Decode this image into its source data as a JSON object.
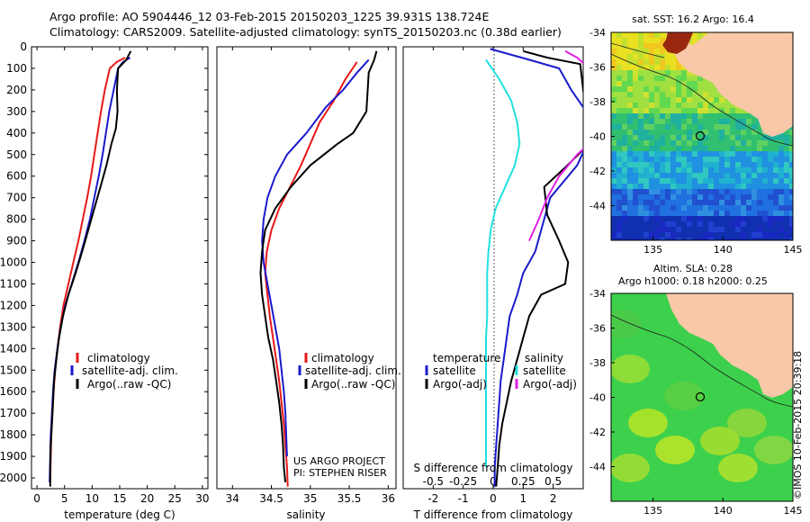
{
  "header": {
    "line1": "Argo profile: AO 5904446_12 03-Feb-2015 20150203_1225 39.931S 138.724E",
    "line2": "Climatology: CARS2009. Satellite-adjusted climatology: synTS_20150203.nc (0.38d earlier)"
  },
  "credits": {
    "project": "US ARGO PROJECT",
    "pi": "PI: STEPHEN RISER",
    "imos": "©IMOS 10-Feb-2015 20:39:18"
  },
  "colors": {
    "climatology": "#e8191a",
    "satellite": "#1a1acc",
    "argo": "#000000",
    "sal_satellite": "#22e0e0",
    "sal_argo": "#e020e0",
    "land": "#f8c8a8"
  },
  "chart_data": [
    {
      "type": "line",
      "id": "temperature",
      "xlabel": "temperature (deg C)",
      "ylabel": "",
      "xlim": [
        -1,
        31
      ],
      "ylim": [
        2050,
        0
      ],
      "xticks": [
        0,
        5,
        10,
        15,
        20,
        25,
        30
      ],
      "yticks": [
        0,
        100,
        200,
        300,
        400,
        500,
        600,
        700,
        800,
        900,
        1000,
        1100,
        1200,
        1300,
        1400,
        1500,
        1600,
        1700,
        1800,
        1900,
        2000
      ],
      "legend": [
        "climatology",
        "satellite-adj. clim.",
        "Argo(..raw -QC)"
      ],
      "series": [
        {
          "name": "climatology",
          "x": [
            16.0,
            14.5,
            13.2,
            12.3,
            11.6,
            11.0,
            10.4,
            9.8,
            9.1,
            8.3,
            7.5,
            6.6,
            5.7,
            4.8,
            4.2,
            3.7,
            3.3,
            3.0,
            2.8,
            2.6,
            2.5,
            2.4
          ],
          "y": [
            50,
            70,
            100,
            200,
            300,
            400,
            500,
            600,
            700,
            800,
            900,
            1000,
            1100,
            1200,
            1300,
            1400,
            1500,
            1600,
            1700,
            1800,
            1900,
            2020
          ]
        },
        {
          "name": "satellite-adj. clim.",
          "x": [
            16.9,
            15.6,
            14.7,
            13.9,
            13.1,
            12.5,
            11.9,
            11.2,
            10.4,
            9.6,
            8.6,
            7.5,
            6.3,
            5.1,
            4.3,
            3.7,
            3.2,
            2.9,
            2.7,
            2.5,
            2.4,
            2.3
          ],
          "y": [
            50,
            70,
            100,
            200,
            300,
            400,
            500,
            600,
            700,
            800,
            900,
            1000,
            1100,
            1200,
            1300,
            1400,
            1500,
            1600,
            1700,
            1800,
            1900,
            2020
          ]
        },
        {
          "name": "Argo(..raw -QC)",
          "x": [
            17.0,
            16.2,
            14.7,
            14.5,
            14.6,
            14.3,
            13.5,
            12.6,
            11.5,
            10.4,
            9.3,
            8.2,
            7.0,
            5.7,
            4.7,
            4.0,
            3.5,
            3.1,
            2.9,
            2.7,
            2.5,
            2.4,
            2.4
          ],
          "y": [
            20,
            60,
            100,
            200,
            300,
            380,
            450,
            550,
            650,
            750,
            850,
            950,
            1050,
            1150,
            1250,
            1350,
            1450,
            1550,
            1650,
            1750,
            1850,
            1950,
            2040
          ]
        }
      ]
    },
    {
      "type": "line",
      "id": "salinity",
      "xlabel": "salinity",
      "xlim": [
        33.8,
        36.1
      ],
      "ylim": [
        2050,
        0
      ],
      "xticks": [
        34,
        34.5,
        35,
        35.5,
        36
      ],
      "legend": [
        "climatology",
        "satellite-adj. clim.",
        "Argo(..raw -QC)"
      ],
      "series": [
        {
          "name": "climatology",
          "x": [
            35.6,
            35.45,
            35.3,
            35.12,
            35.0,
            34.88,
            34.74,
            34.6,
            34.5,
            34.44,
            34.42,
            34.45,
            34.48,
            34.52,
            34.56,
            34.6,
            34.63,
            34.66,
            34.68,
            34.7,
            34.71
          ],
          "y": [
            70,
            150,
            250,
            350,
            450,
            550,
            650,
            750,
            850,
            950,
            1050,
            1150,
            1250,
            1350,
            1450,
            1550,
            1650,
            1750,
            1850,
            1950,
            2040
          ]
        },
        {
          "name": "satellite-adj. clim.",
          "x": [
            35.75,
            35.6,
            35.42,
            35.2,
            34.95,
            34.7,
            34.55,
            34.45,
            34.4,
            34.38,
            34.4,
            34.45,
            34.5,
            34.55,
            34.6,
            34.63,
            34.66,
            34.68,
            34.69,
            34.7
          ],
          "y": [
            60,
            120,
            200,
            280,
            400,
            500,
            600,
            700,
            800,
            900,
            1000,
            1100,
            1200,
            1300,
            1400,
            1500,
            1600,
            1700,
            1800,
            1900
          ]
        },
        {
          "name": "Argo(..raw -QC)",
          "x": [
            35.85,
            35.82,
            35.75,
            35.72,
            35.55,
            35.35,
            35.0,
            34.75,
            34.55,
            34.42,
            34.38,
            34.36,
            34.38,
            34.42,
            34.46,
            34.52,
            34.56,
            34.6,
            34.63,
            34.65,
            34.66,
            34.68
          ],
          "y": [
            20,
            60,
            120,
            300,
            400,
            450,
            550,
            650,
            750,
            850,
            950,
            1050,
            1150,
            1250,
            1350,
            1450,
            1550,
            1650,
            1750,
            1850,
            1950,
            2020
          ]
        }
      ]
    },
    {
      "type": "line",
      "id": "differences",
      "xlabel": "T difference from climatology",
      "xlabel2": "S difference from climatology",
      "xlim": [
        -3,
        3
      ],
      "ylim": [
        2050,
        0
      ],
      "xticks": [
        -2,
        -1,
        0,
        1,
        2
      ],
      "xticks2": [
        -0.5,
        -0.25,
        0,
        0.25,
        0.5
      ],
      "legend": {
        "temperature_heading": "temperature",
        "salinity_heading": "salinity",
        "items": [
          "satellite",
          "Argo(-adj)",
          "satellite",
          "Argo(-adj)"
        ]
      },
      "series": [
        {
          "name": "temperature satellite",
          "x": [
            -0.1,
            1.2,
            2.2,
            2.6,
            3.1,
            3.3,
            2.8,
            1.9,
            1.6,
            1.4,
            1.0,
            0.8,
            0.55,
            0.45,
            0.35,
            0.25,
            0.2,
            0.15,
            0.1,
            0.05,
            0.05,
            0.05
          ],
          "y": [
            10,
            60,
            100,
            200,
            300,
            400,
            550,
            700,
            850,
            950,
            1050,
            1150,
            1250,
            1350,
            1450,
            1550,
            1650,
            1750,
            1850,
            1950,
            2000,
            2040
          ]
        },
        {
          "name": "temperature Argo(-adj)",
          "x": [
            1.0,
            1.8,
            2.9,
            3.0,
            3.1,
            3.2,
            2.4,
            1.7,
            1.8,
            2.2,
            2.5,
            2.4,
            1.6,
            1.2,
            1.0,
            0.8,
            0.6,
            0.45,
            0.3,
            0.2,
            0.15,
            0.1
          ],
          "y": [
            20,
            50,
            80,
            200,
            300,
            450,
            560,
            650,
            780,
            900,
            1000,
            1100,
            1150,
            1250,
            1350,
            1450,
            1550,
            1650,
            1750,
            1850,
            1950,
            2040
          ]
        },
        {
          "name": "salinity satellite",
          "x": [
            -0.06,
            0.05,
            0.15,
            0.2,
            0.22,
            0.18,
            0.1,
            0.02,
            -0.02,
            -0.04,
            -0.05,
            -0.05,
            -0.05,
            -0.06,
            -0.06,
            -0.06,
            -0.06,
            -0.06,
            -0.06,
            -0.06
          ],
          "y": [
            60,
            150,
            250,
            350,
            450,
            550,
            650,
            750,
            850,
            950,
            1050,
            1150,
            1250,
            1350,
            1450,
            1550,
            1650,
            1750,
            1850,
            1950
          ]
        },
        {
          "name": "salinity Argo(-adj)",
          "x": [
            0.6,
            0.7,
            0.8,
            0.85,
            0.87,
            0.9,
            0.7,
            0.55,
            0.45,
            0.38,
            0.3
          ],
          "y": [
            20,
            50,
            100,
            200,
            300,
            400,
            500,
            600,
            700,
            800,
            900
          ]
        }
      ]
    },
    {
      "type": "heatmap",
      "id": "sst_map",
      "title": "sat. SST: 16.2  Argo: 16.4",
      "xlim": [
        132,
        145
      ],
      "ylim": [
        -46,
        -34
      ],
      "xticks": [
        135,
        140,
        145
      ],
      "yticks": [
        -34,
        -36,
        -38,
        -40,
        -42,
        -44
      ],
      "marker": {
        "lon": 138.724,
        "lat": -39.931
      }
    },
    {
      "type": "heatmap",
      "id": "sla_map",
      "title": "Altim. SLA: 0.28",
      "subtitle": "Argo h1000: 0.18  h2000: 0.25",
      "xlim": [
        132,
        145
      ],
      "ylim": [
        -46,
        -34
      ],
      "xticks": [
        135,
        140,
        145
      ],
      "yticks": [
        -34,
        -36,
        -38,
        -40,
        -42,
        -44
      ],
      "marker": {
        "lon": 138.724,
        "lat": -39.931
      }
    }
  ]
}
